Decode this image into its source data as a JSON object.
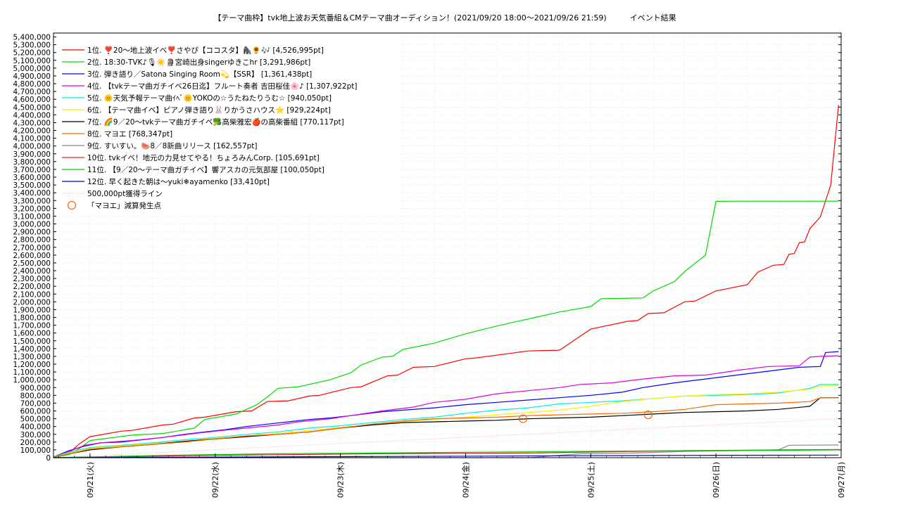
{
  "chart_data": {
    "type": "line",
    "title": "【テーマ曲枠】tvk地上波お天気番組＆CMテーマ曲オーディション！(2021/09/20 18:00〜2021/09/26 21:59)　　　イベント結果",
    "ylim": [
      0,
      5450000
    ],
    "y_ticks": [
      0,
      100000,
      200000,
      300000,
      400000,
      500000,
      600000,
      700000,
      800000,
      900000,
      1000000,
      1100000,
      1200000,
      1300000,
      1400000,
      1500000,
      1600000,
      1700000,
      1800000,
      1900000,
      2000000,
      2100000,
      2200000,
      2300000,
      2400000,
      2500000,
      2600000,
      2700000,
      2800000,
      2900000,
      3000000,
      3100000,
      3200000,
      3300000,
      3400000,
      3500000,
      3600000,
      3700000,
      3800000,
      3900000,
      4000000,
      4100000,
      4200000,
      4300000,
      4400000,
      4500000,
      4600000,
      4700000,
      4800000,
      4900000,
      5000000,
      5100000,
      5200000,
      5300000,
      5400000
    ],
    "y_tick_labels": [
      "0",
      "100,000",
      "200,000",
      "300,000",
      "400,000",
      "500,000",
      "600,000",
      "700,000",
      "800,000",
      "900,000",
      "1,000,000",
      "1,100,000",
      "1,200,000",
      "1,300,000",
      "1,400,000",
      "1,500,000",
      "1,600,000",
      "1,700,000",
      "1,800,000",
      "1,900,000",
      "2,000,000",
      "2,100,000",
      "2,200,000",
      "2,300,000",
      "2,400,000",
      "2,500,000",
      "2,600,000",
      "2,700,000",
      "2,800,000",
      "2,900,000",
      "3,000,000",
      "3,100,000",
      "3,200,000",
      "3,300,000",
      "3,400,000",
      "3,500,000",
      "3,600,000",
      "3,700,000",
      "3,800,000",
      "3,900,000",
      "4,000,000",
      "4,100,000",
      "4,200,000",
      "4,300,000",
      "4,400,000",
      "4,500,000",
      "4,600,000",
      "4,700,000",
      "4,800,000",
      "4,900,000",
      "5,000,000",
      "5,100,000",
      "5,200,000",
      "5,300,000",
      "5,400,000"
    ],
    "xlim": [
      -1.0,
      150.0
    ],
    "x_ticks": [
      6,
      30,
      54,
      78,
      102,
      126,
      150
    ],
    "x_tick_labels": [
      "09/21(火)",
      "09/22(水)",
      "09/23(木)",
      "09/24(金)",
      "09/25(土)",
      "09/26(日)",
      "09/27(月)"
    ],
    "grid": true,
    "legend_position": "top-left",
    "series": [
      {
        "name": "1位. ❣️20〜地上波イベ❣️さやぴ【ココスタ】🦍🌻🎶 [4,526,995pt]",
        "color": "#ff0000",
        "x": [
          -1,
          2,
          4,
          6,
          12,
          14,
          20,
          22,
          26,
          28,
          34,
          37,
          40,
          44,
          48,
          50,
          56,
          58,
          63,
          65,
          68,
          72,
          78,
          80,
          90,
          96,
          98,
          102,
          109,
          111,
          113,
          116,
          120,
          122,
          126,
          132,
          134,
          137,
          139,
          140,
          141,
          142,
          143,
          144,
          146,
          148,
          149.5
        ],
        "y": [
          10000,
          60000,
          180000,
          270000,
          340000,
          350000,
          420000,
          430000,
          510000,
          520000,
          590000,
          600000,
          720000,
          730000,
          790000,
          800000,
          900000,
          910000,
          1050000,
          1060000,
          1160000,
          1170000,
          1270000,
          1280000,
          1370000,
          1380000,
          1470000,
          1650000,
          1750000,
          1760000,
          1850000,
          1860000,
          2000000,
          2010000,
          2140000,
          2220000,
          2380000,
          2470000,
          2480000,
          2610000,
          2620000,
          2760000,
          2770000,
          2940000,
          3090000,
          3500000,
          4526995
        ]
      },
      {
        "name": "2位. 18:30-TVK♪🎙☀️🗿宮崎出身singerゆきこhr [3,291,986pt]",
        "color": "#00dd00",
        "x": [
          -1,
          2,
          4,
          6,
          14,
          20,
          26,
          28,
          34,
          38,
          40,
          42,
          46,
          52,
          56,
          58,
          62,
          64,
          66,
          72,
          78,
          84,
          90,
          96,
          102,
          104,
          112,
          114,
          118,
          120,
          124,
          126,
          130,
          136,
          138,
          140,
          144,
          146,
          148,
          149.5
        ],
        "y": [
          5000,
          40000,
          120000,
          220000,
          290000,
          310000,
          380000,
          490000,
          560000,
          680000,
          780000,
          890000,
          910000,
          1000000,
          1090000,
          1190000,
          1290000,
          1300000,
          1390000,
          1470000,
          1590000,
          1690000,
          1780000,
          1870000,
          1940000,
          2040000,
          2050000,
          2140000,
          2260000,
          2390000,
          2600000,
          3290000,
          3291986,
          3291986,
          3291986,
          3291986,
          3291986,
          3291986,
          3291986,
          3291986
        ]
      },
      {
        "name": "3位. 弾き語り／Satona Singing Room💫【SSR】 [1,361,438pt]",
        "color": "#0000ff",
        "x": [
          -1,
          2,
          5,
          8,
          12,
          16,
          20,
          24,
          28,
          32,
          36,
          40,
          44,
          48,
          52,
          56,
          62,
          66,
          72,
          78,
          84,
          90,
          96,
          102,
          108,
          112,
          118,
          124,
          130,
          136,
          142,
          146,
          147,
          149.5
        ],
        "y": [
          10000,
          90000,
          150000,
          190000,
          200000,
          230000,
          260000,
          300000,
          330000,
          360000,
          400000,
          430000,
          460000,
          490000,
          510000,
          540000,
          590000,
          610000,
          640000,
          680000,
          710000,
          740000,
          770000,
          800000,
          840000,
          900000,
          960000,
          1010000,
          1060000,
          1110000,
          1160000,
          1170000,
          1350000,
          1361438
        ]
      },
      {
        "name": "4位. 【tvkテーマ曲ガチイベ26日迄】フルート奏者 吉田桜佳🌸♪ [1,307,922pt]",
        "color": "#dd00dd",
        "x": [
          -1,
          2,
          5,
          8,
          14,
          20,
          26,
          30,
          36,
          42,
          46,
          52,
          56,
          62,
          68,
          72,
          78,
          84,
          90,
          96,
          100,
          106,
          112,
          118,
          124,
          130,
          136,
          142,
          144,
          146,
          149.5
        ],
        "y": [
          10000,
          80000,
          160000,
          190000,
          220000,
          260000,
          310000,
          340000,
          380000,
          420000,
          460000,
          500000,
          540000,
          600000,
          650000,
          710000,
          750000,
          820000,
          860000,
          900000,
          940000,
          960000,
          1010000,
          1050000,
          1060000,
          1120000,
          1170000,
          1180000,
          1290000,
          1300000,
          1307922
        ]
      },
      {
        "name": "5位. 🌞天気予報テーマ曲ｲﾍﾞ🌞YOKOの☆うたねたりうむ☆ [940,050pt]",
        "color": "#00eeee",
        "x": [
          -1,
          2,
          6,
          12,
          18,
          24,
          30,
          36,
          42,
          48,
          54,
          60,
          66,
          72,
          78,
          84,
          90,
          96,
          102,
          108,
          114,
          120,
          126,
          132,
          138,
          144,
          146,
          149.5
        ],
        "y": [
          10000,
          70000,
          130000,
          160000,
          190000,
          230000,
          260000,
          300000,
          330000,
          380000,
          410000,
          450000,
          490000,
          520000,
          570000,
          610000,
          640000,
          690000,
          710000,
          730000,
          760000,
          790000,
          800000,
          810000,
          830000,
          890000,
          940000,
          940050
        ]
      },
      {
        "name": "6位. 【テーマ曲イベ】ピアノ弾き語り🐰りかうさハウス⭐ [929,224pt]",
        "color": "#ffee00",
        "x": [
          -1,
          2,
          6,
          12,
          18,
          24,
          30,
          36,
          42,
          48,
          54,
          60,
          66,
          72,
          78,
          84,
          90,
          96,
          102,
          108,
          114,
          120,
          126,
          132,
          138,
          144,
          146,
          149.5
        ],
        "y": [
          5000,
          60000,
          120000,
          150000,
          180000,
          210000,
          250000,
          280000,
          310000,
          350000,
          390000,
          420000,
          460000,
          490000,
          520000,
          550000,
          580000,
          610000,
          660000,
          720000,
          760000,
          790000,
          810000,
          820000,
          840000,
          880000,
          920000,
          929224
        ]
      },
      {
        "name": "7位. 🌈9／20〜tvkテーマ曲ガチイベ🥦高柴雅宏🍎の高柴番組 [770,117pt]",
        "color": "#000000",
        "x": [
          -1,
          2,
          6,
          12,
          18,
          24,
          30,
          36,
          42,
          48,
          54,
          60,
          66,
          72,
          78,
          84,
          90,
          96,
          102,
          108,
          114,
          120,
          126,
          132,
          138,
          144,
          146,
          149.5
        ],
        "y": [
          5000,
          50000,
          100000,
          140000,
          170000,
          210000,
          240000,
          270000,
          300000,
          330000,
          380000,
          420000,
          450000,
          460000,
          470000,
          480000,
          500000,
          510000,
          520000,
          540000,
          560000,
          580000,
          590000,
          600000,
          620000,
          660000,
          770000,
          770117
        ]
      },
      {
        "name": "8位. マヨエ [768,347pt]",
        "color": "#ff6600",
        "x": [
          -1,
          2,
          6,
          12,
          18,
          24,
          30,
          36,
          42,
          48,
          54,
          60,
          66,
          72,
          78,
          84,
          90,
          96,
          102,
          108,
          114,
          120,
          126,
          132,
          138,
          144,
          146,
          149.5
        ],
        "y": [
          5000,
          50000,
          110000,
          140000,
          170000,
          200000,
          240000,
          280000,
          300000,
          330000,
          380000,
          430000,
          470000,
          500000,
          510000,
          520000,
          540000,
          550000,
          560000,
          570000,
          590000,
          620000,
          680000,
          690000,
          700000,
          720000,
          768000,
          768347
        ]
      },
      {
        "name": "9位. すいすい。🍉8／8新曲リリース [162,557pt]",
        "color": "#888888",
        "x": [
          -1,
          90,
          100,
          110,
          120,
          130,
          138,
          140,
          149.5
        ],
        "y": [
          0,
          0,
          50000,
          60000,
          80000,
          90000,
          100000,
          160000,
          162557
        ]
      },
      {
        "name": "10位. tvkイベ！地元の力見せてやる！ちょろみんCorp. [105,691pt]",
        "color": "#dd2222",
        "x": [
          -1,
          30,
          60,
          90,
          110,
          120,
          130,
          140,
          149.5
        ],
        "y": [
          0,
          30000,
          50000,
          60000,
          80000,
          90000,
          95000,
          100000,
          105691
        ]
      },
      {
        "name": "11位. 【9／20〜テーマ曲ガチイベ】響アスカの元気部屋 [100,050pt]",
        "color": "#00cc00",
        "x": [
          -1,
          20,
          40,
          60,
          80,
          100,
          120,
          140,
          149.5
        ],
        "y": [
          0,
          30000,
          50000,
          60000,
          70000,
          80000,
          90000,
          95000,
          100050
        ]
      },
      {
        "name": "12位. 早く起きた朝は〜yuki❄ayamenko [33,410pt]",
        "color": "#0000cc",
        "x": [
          -1,
          20,
          40,
          60,
          80,
          100,
          120,
          140,
          149.5
        ],
        "y": [
          0,
          5000,
          10000,
          15000,
          20000,
          25000,
          30000,
          32000,
          33410
        ]
      }
    ],
    "reference_line": {
      "name": "500,000pt獲得ライン",
      "color": "#ffaaaa",
      "y_start": 0,
      "y_end": 500000
    },
    "annotations": {
      "name": "「マヨエ」減算発生点",
      "color": "#ff6600",
      "points": [
        {
          "x": 89,
          "y": 500000
        },
        {
          "x": 113,
          "y": 550000
        }
      ]
    }
  }
}
